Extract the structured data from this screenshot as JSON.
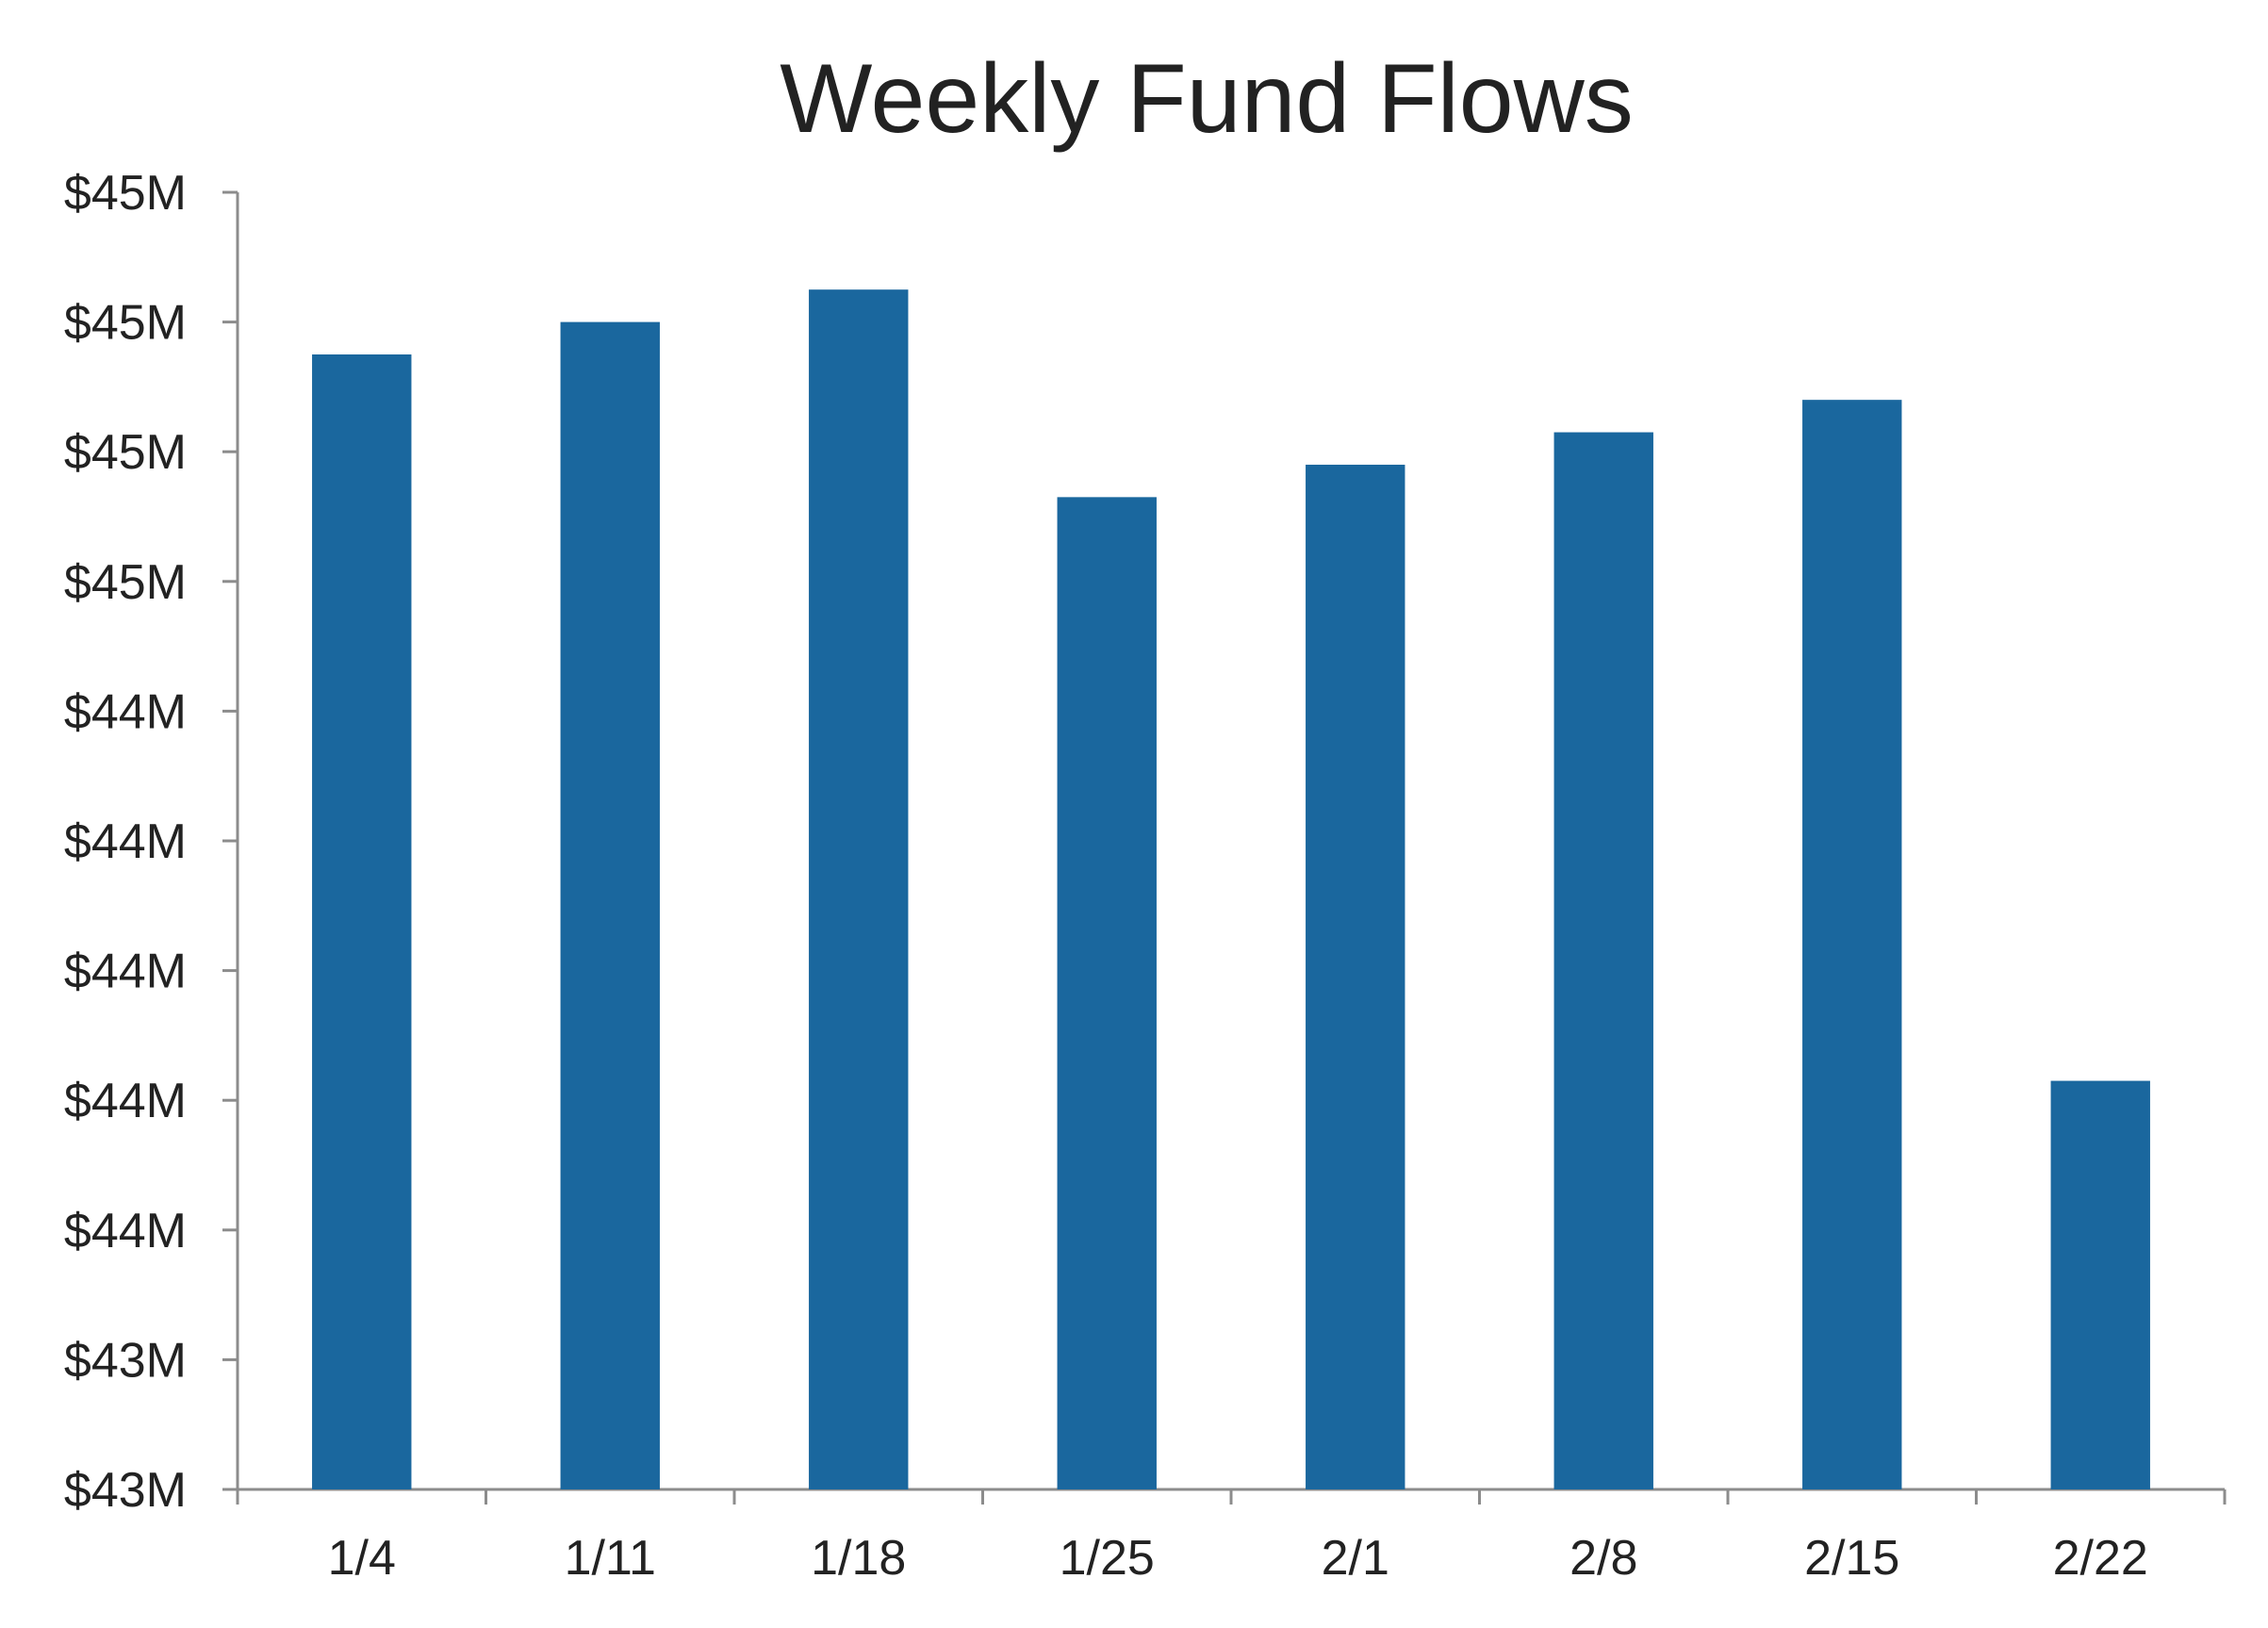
{
  "chart_data": {
    "type": "bar",
    "title": "Weekly Fund Flows",
    "xlabel": "",
    "ylabel": "",
    "categories": [
      "1/4",
      "1/11",
      "1/18",
      "1/25",
      "2/1",
      "2/8",
      "2/15",
      "2/22"
    ],
    "values": [
      44.75,
      44.8,
      44.85,
      44.53,
      44.58,
      44.63,
      44.68,
      43.63
    ],
    "ylim": [
      43.0,
      45.0
    ],
    "y_tick_labels": [
      "$43M",
      "$43M",
      "$44M",
      "$44M",
      "$44M",
      "$44M",
      "$44M",
      "$45M",
      "$45M",
      "$45M",
      "$45M"
    ],
    "grid": false,
    "legend": "none",
    "colors": {
      "bar": "#1a679e",
      "axis": "#8c8c8c",
      "text": "#222222"
    }
  }
}
